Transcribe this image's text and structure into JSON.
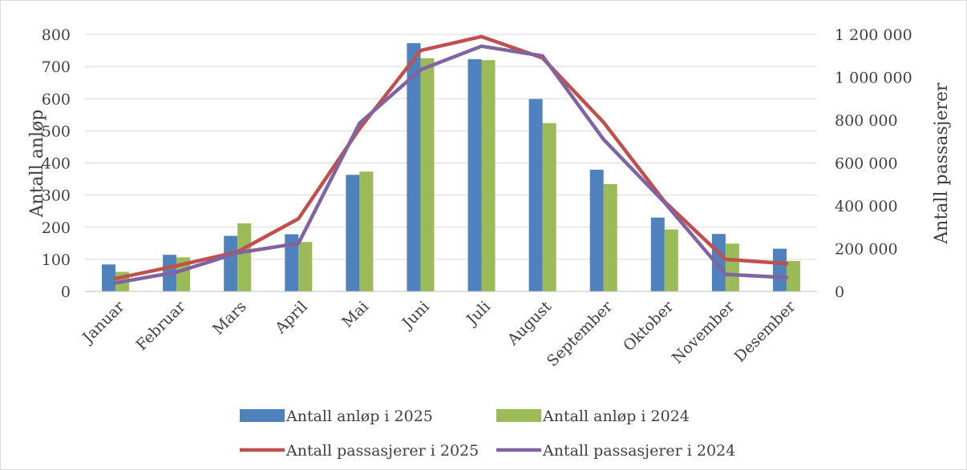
{
  "chart_data": {
    "type": "bar",
    "categories": [
      "Januar",
      "Februar",
      "Mars",
      "April",
      "Mai",
      "Juni",
      "Juli",
      "August",
      "September",
      "Oktober",
      "November",
      "Desember"
    ],
    "series": [
      {
        "name": "Antall anløp i 2025",
        "type": "bar",
        "axis": "left",
        "color": "#4f81bd",
        "values": [
          84,
          114,
          173,
          178,
          363,
          773,
          723,
          599,
          379,
          230,
          179,
          133
        ]
      },
      {
        "name": "Antall anløp i 2024",
        "type": "bar",
        "axis": "left",
        "color": "#9bbb59",
        "values": [
          61,
          106,
          212,
          154,
          373,
          726,
          720,
          524,
          334,
          193,
          149,
          95
        ]
      },
      {
        "name": "Antall passasjerer i 2025",
        "type": "line",
        "axis": "right",
        "color": "#c0504d",
        "values": [
          60000,
          120000,
          185000,
          340000,
          760000,
          1125000,
          1190000,
          1090000,
          790000,
          420000,
          150000,
          130000
        ]
      },
      {
        "name": "Antall passasjerer i 2024",
        "type": "line",
        "axis": "right",
        "color": "#8064a2",
        "values": [
          40000,
          90000,
          180000,
          225000,
          785000,
          1035000,
          1145000,
          1100000,
          710000,
          415000,
          80000,
          65000
        ]
      }
    ],
    "ylabel": "Antall anløp",
    "y2label": "Antall passasjerer",
    "ylim": [
      0,
      800
    ],
    "yticks": [
      0,
      100,
      200,
      300,
      400,
      500,
      600,
      700,
      800
    ],
    "y2lim": [
      0,
      1200000
    ],
    "y2ticks": [
      0,
      200000,
      400000,
      600000,
      800000,
      1000000,
      1200000
    ],
    "y2tick_labels": [
      "0",
      "200 000",
      "400 000",
      "600 000",
      "800 000",
      "1 000 000",
      "1 200 000"
    ],
    "grid": true,
    "legend": "bottom"
  }
}
